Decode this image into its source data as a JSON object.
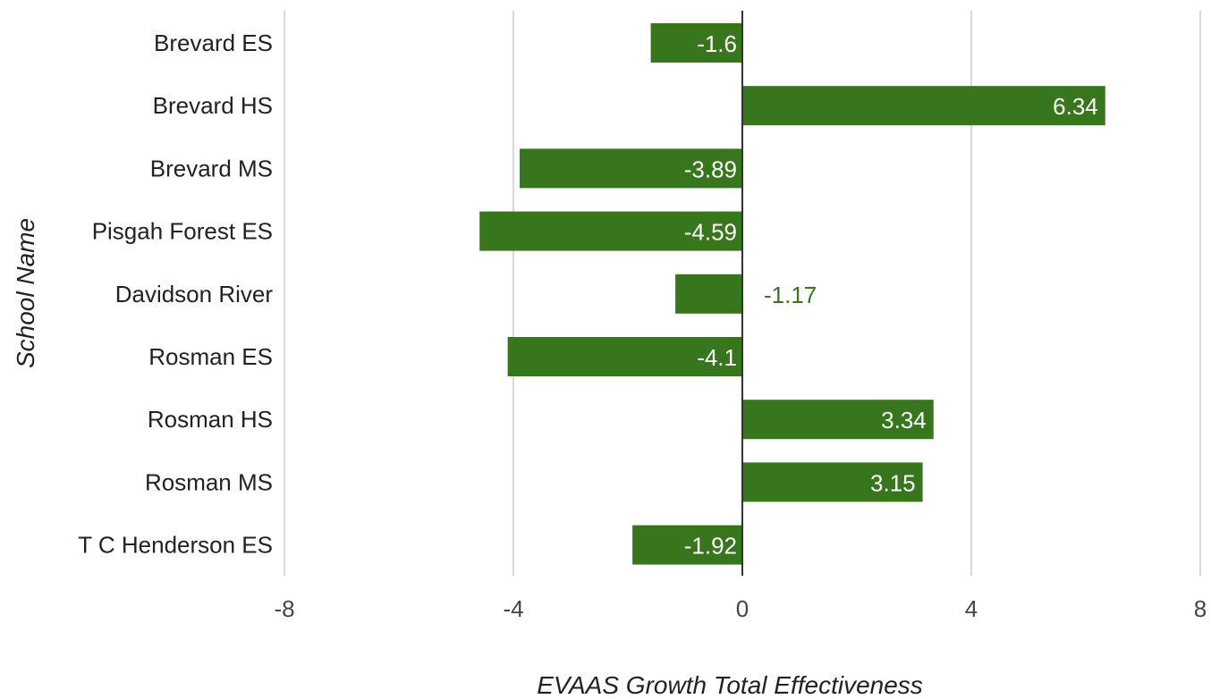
{
  "colors": {
    "bar": "#38761d",
    "grid": "#cccccc",
    "zero_line": "#333333",
    "label_inside": "#ffffff",
    "label_outside": "#38761d"
  },
  "chart_data": {
    "type": "bar",
    "orientation": "horizontal",
    "categories": [
      "Brevard ES",
      "Brevard HS",
      "Brevard MS",
      "Pisgah Forest ES",
      "Davidson River",
      "Rosman ES",
      "Rosman HS",
      "Rosman MS",
      "T C Henderson ES"
    ],
    "values": [
      -1.6,
      6.34,
      -3.89,
      -4.59,
      -1.17,
      -4.1,
      3.34,
      3.15,
      -1.92
    ],
    "data_labels": [
      "-1.6",
      "6.34",
      "-3.89",
      "-4.59",
      "-1.17",
      "-4.1",
      "3.34",
      "3.15",
      "-1.92"
    ],
    "xlabel": "EVAAS Growth Total Effectiveness",
    "ylabel": "School Name",
    "xlim": [
      -8,
      8
    ],
    "xticks": [
      -8,
      -4,
      0,
      4,
      8
    ],
    "xtick_labels": [
      "-8",
      "-4",
      "0",
      "4",
      "8"
    ],
    "grid": true,
    "legend": "none"
  }
}
